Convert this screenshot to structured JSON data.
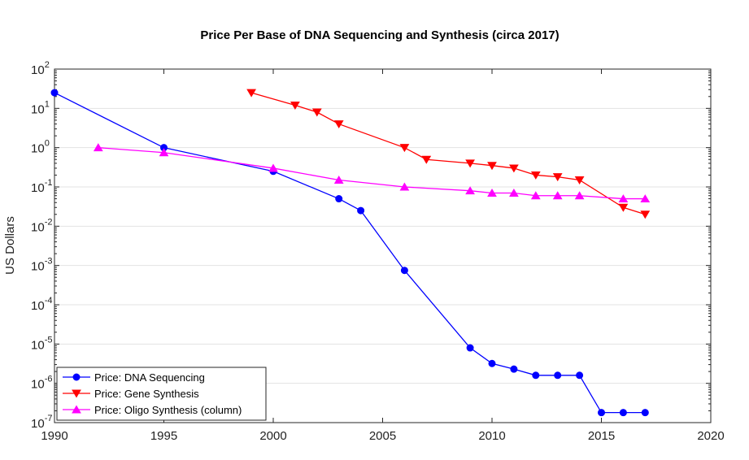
{
  "chart_data": {
    "type": "line",
    "title": "Price Per Base of DNA Sequencing and Synthesis (circa 2017)",
    "xlabel": "",
    "ylabel": "US Dollars",
    "xlim": [
      1990,
      2020
    ],
    "ylim": [
      1e-07,
      100
    ],
    "yscale": "log",
    "grid": "on (y major)",
    "legend_position": "bottom-left",
    "x_ticks": [
      "1990",
      "1995",
      "2000",
      "2005",
      "2010",
      "2015",
      "2020"
    ],
    "y_ticks": [
      {
        "base": "10",
        "exp": "-7"
      },
      {
        "base": "10",
        "exp": "-6"
      },
      {
        "base": "10",
        "exp": "-5"
      },
      {
        "base": "10",
        "exp": "-4"
      },
      {
        "base": "10",
        "exp": "-3"
      },
      {
        "base": "10",
        "exp": "-2"
      },
      {
        "base": "10",
        "exp": "-1"
      },
      {
        "base": "10",
        "exp": "0"
      },
      {
        "base": "10",
        "exp": "1"
      },
      {
        "base": "10",
        "exp": "2"
      }
    ],
    "series": [
      {
        "name": "Price: DNA Sequencing",
        "color": "#0000ff",
        "marker": "circle",
        "x": [
          1990,
          1995,
          2000,
          2003,
          2004,
          2006,
          2009,
          2010,
          2011,
          2012,
          2013,
          2014,
          2015,
          2016,
          2017
        ],
        "y": [
          25,
          1,
          0.25,
          0.05,
          0.025,
          0.00075,
          8e-06,
          3.2e-06,
          2.3e-06,
          1.6e-06,
          1.6e-06,
          1.6e-06,
          1.8e-07,
          1.8e-07,
          1.8e-07
        ]
      },
      {
        "name": "Price: Gene Synthesis",
        "color": "#ff0000",
        "marker": "triangle-down",
        "x": [
          1999,
          2001,
          2002,
          2003,
          2006,
          2007,
          2009,
          2010,
          2011,
          2012,
          2013,
          2014,
          2016,
          2017
        ],
        "y": [
          25,
          12,
          8,
          4,
          1,
          0.5,
          0.4,
          0.35,
          0.3,
          0.2,
          0.18,
          0.15,
          0.03,
          0.02
        ]
      },
      {
        "name": "Price: Oligo Synthesis (column)",
        "color": "#ff00ff",
        "marker": "triangle-up",
        "x": [
          1992,
          1995,
          2000,
          2003,
          2006,
          2009,
          2010,
          2011,
          2012,
          2013,
          2014,
          2016,
          2017
        ],
        "y": [
          1,
          0.75,
          0.3,
          0.15,
          0.1,
          0.08,
          0.07,
          0.07,
          0.06,
          0.06,
          0.06,
          0.05,
          0.05
        ]
      }
    ]
  }
}
